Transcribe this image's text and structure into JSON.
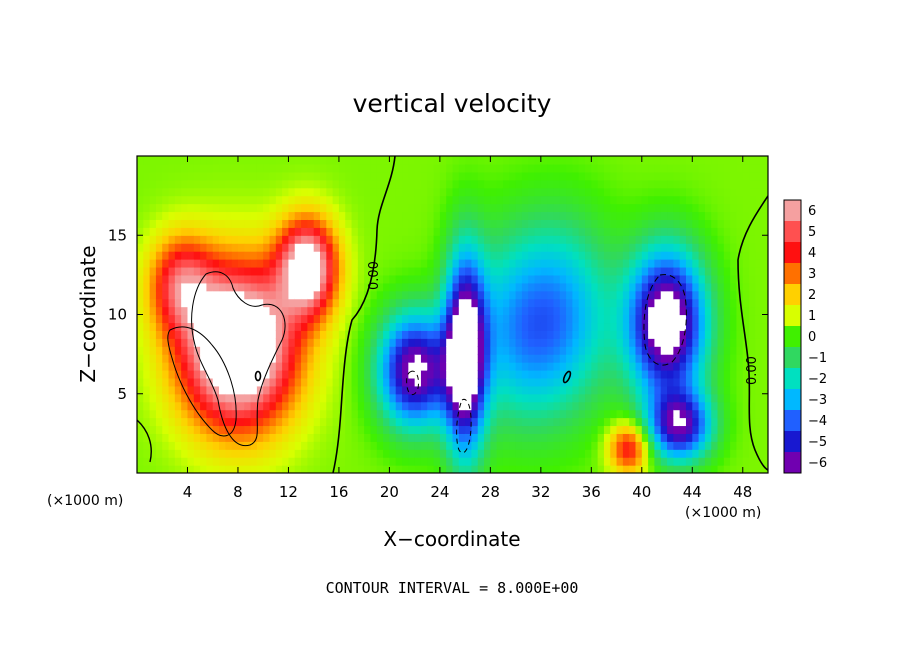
{
  "chart_data": {
    "type": "heatmap",
    "title": "vertical velocity",
    "xlabel": "X−coordinate",
    "ylabel": "Z−coordinate",
    "x_unit": "(×1000 m)",
    "y_unit": "(×1000 m)",
    "xlim": [
      0,
      50
    ],
    "ylim": [
      0,
      20
    ],
    "x_ticks": [
      4,
      8,
      12,
      16,
      20,
      24,
      28,
      32,
      36,
      40,
      44,
      48
    ],
    "y_ticks": [
      5,
      10,
      15
    ],
    "x_tick_labels": [
      "4",
      "8",
      "12",
      "16",
      "20",
      "24",
      "28",
      "32",
      "36",
      "40",
      "44",
      "48"
    ],
    "y_tick_labels": [
      "5",
      "10",
      "15"
    ],
    "contour_label": "0.00",
    "footer": "CONTOUR INTERVAL = 8.000E+00",
    "colorbar": {
      "min": -6,
      "max": 6,
      "ticks": [
        6,
        5,
        4,
        3,
        2,
        1,
        0,
        -1,
        -2,
        -3,
        -4,
        -5,
        -6
      ],
      "tick_labels": [
        "6",
        "5",
        "4",
        "3",
        "2",
        "1",
        "0",
        "−1",
        "−2",
        "−3",
        "−4",
        "−5",
        "−6"
      ],
      "colors": [
        "#f5a0a0",
        "#ff5050",
        "#ff1010",
        "#ff7000",
        "#ffd000",
        "#d8ff00",
        "#40f000",
        "#30d860",
        "#00e0c0",
        "#00b8ff",
        "#2060ff",
        "#1818d0",
        "#7000b0"
      ]
    },
    "features": [
      {
        "kind": "updraft",
        "x": 8,
        "z": 8,
        "sx": 4.5,
        "sz": 5,
        "value": 9
      },
      {
        "kind": "updraft",
        "x": 13.5,
        "z": 13,
        "sx": 2.3,
        "sz": 3,
        "value": 7
      },
      {
        "kind": "updraft",
        "x": 3.5,
        "z": 12,
        "sx": 2.5,
        "sz": 3,
        "value": 4
      },
      {
        "kind": "updraft",
        "x": 39,
        "z": 1.6,
        "sx": 1.6,
        "sz": 1.6,
        "value": 4
      },
      {
        "kind": "downdraft",
        "x": 22,
        "z": 6.5,
        "sx": 2.8,
        "sz": 3.5,
        "value": -7
      },
      {
        "kind": "downdraft",
        "x": 26,
        "z": 7.5,
        "sx": 1.6,
        "sz": 6,
        "value": -8
      },
      {
        "kind": "downdraft",
        "x": 42,
        "z": 9.5,
        "sx": 3,
        "sz": 4.5,
        "value": -8
      },
      {
        "kind": "downdraft",
        "x": 43,
        "z": 3,
        "sx": 2.5,
        "sz": 2.2,
        "value": -6
      },
      {
        "kind": "downdraft",
        "x": 30,
        "z": 9,
        "sx": 4,
        "sz": 6,
        "value": -3
      },
      {
        "kind": "downdraft",
        "x": 34,
        "z": 10,
        "sx": 4,
        "sz": 6,
        "value": -3
      }
    ]
  }
}
